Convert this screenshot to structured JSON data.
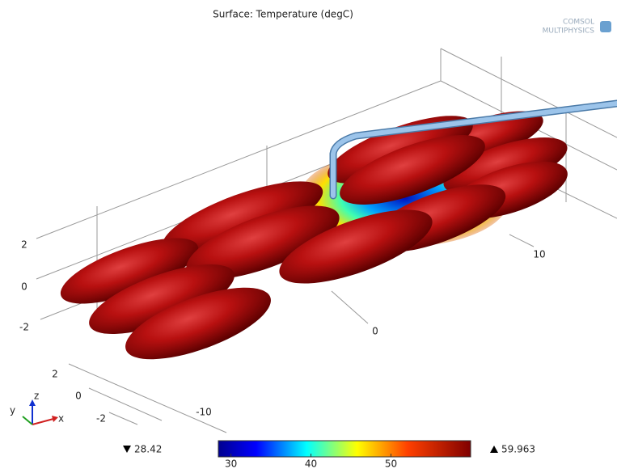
{
  "title": "Surface: Temperature (degC)",
  "logo": {
    "line1": "COMSOL",
    "line2": "MULTIPHYSICS"
  },
  "axes": {
    "z_ticks": [
      2,
      0,
      -2
    ],
    "y_ticks": [
      2,
      0,
      -2
    ],
    "x_ticks": [
      -10,
      0,
      10
    ],
    "triad": {
      "z": "z",
      "y": "y",
      "x": "x"
    }
  },
  "colorbar": {
    "min": 28.42,
    "max": 59.963,
    "ticks": [
      30,
      40,
      50
    ]
  }
}
